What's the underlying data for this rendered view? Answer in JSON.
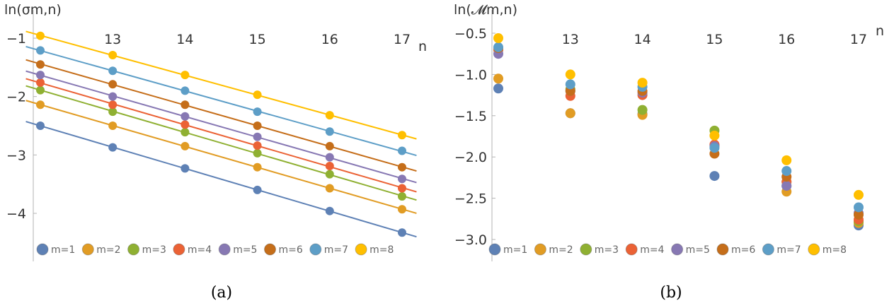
{
  "colors": [
    "#5E81B5",
    "#E19C24",
    "#8FB032",
    "#EB6235",
    "#8778B3",
    "#C56E1A",
    "#5D9EC7",
    "#FFBF00"
  ],
  "chart_data": [
    {
      "type": "scatter",
      "panel_caption": "(a)",
      "ylabel": "ln(σm,n)",
      "xlabel": "n",
      "xlim": [
        12.0,
        17.0
      ],
      "ylim": [
        -4.6,
        -0.85
      ],
      "xticks": [
        13,
        14,
        15,
        16,
        17
      ],
      "yticks": [
        -1,
        -2,
        -3,
        -4
      ],
      "ytick_labels": [
        "−1",
        "−2",
        "−3",
        "−4"
      ],
      "fit_lines": true,
      "legend_position": "bottom",
      "x": [
        12,
        13,
        14,
        15,
        16,
        17
      ],
      "series": [
        {
          "name": "m=1",
          "values": [
            -2.5,
            -2.87,
            -3.23,
            -3.6,
            -3.96,
            -4.33
          ]
        },
        {
          "name": "m=2",
          "values": [
            -2.14,
            -2.5,
            -2.85,
            -3.21,
            -3.57,
            -3.93
          ]
        },
        {
          "name": "m=3",
          "values": [
            -1.89,
            -2.26,
            -2.61,
            -2.97,
            -3.33,
            -3.71
          ]
        },
        {
          "name": "m=4",
          "values": [
            -1.76,
            -2.14,
            -2.48,
            -2.84,
            -3.19,
            -3.57
          ]
        },
        {
          "name": "m=5",
          "values": [
            -1.63,
            -2.0,
            -2.34,
            -2.69,
            -3.04,
            -3.41
          ]
        },
        {
          "name": "m=6",
          "values": [
            -1.45,
            -1.79,
            -2.14,
            -2.5,
            -2.85,
            -3.21
          ]
        },
        {
          "name": "m=7",
          "values": [
            -1.21,
            -1.56,
            -1.9,
            -2.26,
            -2.6,
            -2.93
          ]
        },
        {
          "name": "m=8",
          "values": [
            -0.96,
            -1.29,
            -1.63,
            -1.97,
            -2.32,
            -2.66
          ]
        }
      ]
    },
    {
      "type": "scatter",
      "panel_caption": "(b)",
      "ylabel": "ln(𝓜m,n)",
      "xlabel": "n",
      "xlim": [
        12.0,
        17.0
      ],
      "ylim": [
        -3.18,
        -0.48
      ],
      "xticks": [
        13,
        14,
        15,
        16,
        17
      ],
      "yticks": [
        -0.5,
        -1.0,
        -1.5,
        -2.0,
        -2.5,
        -3.0
      ],
      "ytick_labels": [
        "−0.5",
        "−1.0",
        "−1.5",
        "−2.0",
        "−2.5",
        "−3.0"
      ],
      "fit_lines": false,
      "legend_position": "bottom",
      "x": [
        12,
        13,
        14,
        15,
        16,
        17
      ],
      "series": [
        {
          "name": "m=1",
          "values": [
            -1.17,
            -1.47,
            -1.48,
            -2.23,
            -2.35,
            -2.83
          ]
        },
        {
          "name": "m=2",
          "values": [
            -1.05,
            -1.47,
            -1.49,
            -1.86,
            -2.42,
            -2.8
          ]
        },
        {
          "name": "m=3",
          "values": [
            -0.7,
            -1.18,
            -1.43,
            -1.68,
            -2.3,
            -2.78
          ]
        },
        {
          "name": "m=4",
          "values": [
            -0.7,
            -1.26,
            -1.25,
            -1.85,
            -2.3,
            -2.76
          ]
        },
        {
          "name": "m=5",
          "values": [
            -0.75,
            -1.2,
            -1.22,
            -1.87,
            -2.35,
            -2.68
          ]
        },
        {
          "name": "m=6",
          "values": [
            -0.68,
            -1.2,
            -1.2,
            -1.96,
            -2.24,
            -2.7
          ]
        },
        {
          "name": "m=7",
          "values": [
            -0.67,
            -1.12,
            -1.15,
            -1.89,
            -2.17,
            -2.61
          ]
        },
        {
          "name": "m=8",
          "values": [
            -0.56,
            -1.0,
            -1.1,
            -1.74,
            -2.04,
            -2.46
          ]
        }
      ]
    }
  ]
}
